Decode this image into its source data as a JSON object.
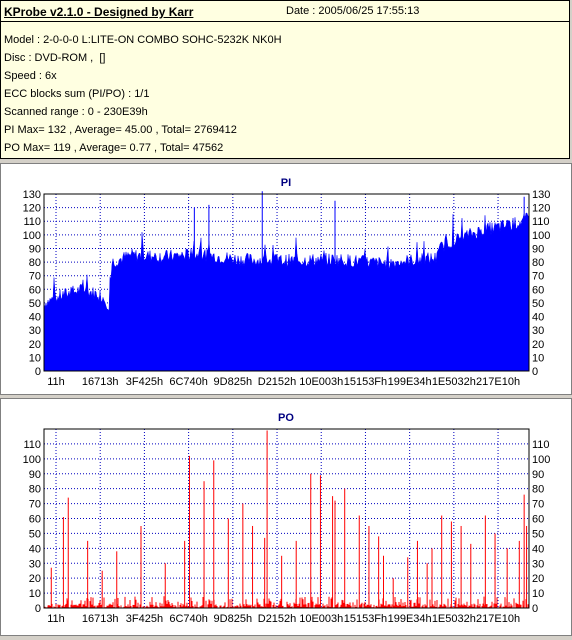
{
  "header": {
    "title": "KProbe v2.1.0 - Designed by Karr",
    "date": "Date : 2005/06/25 17:55:13",
    "lines": [
      "Model : 2-0-0-0 L:LITE-ON COMBO SOHC-5232K NK0H",
      "Disc : DVD-ROM ,  []",
      "Speed : 6x",
      "ECC blocks sum (PI/PO) : 1/1",
      "Scanned range : 0 - 230E39h",
      "PI Max= 132 , Average= 45.00 , Total= 2769412",
      "PO Max= 119 , Average= 0.77 , Total= 47562"
    ]
  },
  "chart_data": [
    {
      "type": "area",
      "title": "PI",
      "color": "#0000ff",
      "x_ticks": [
        "11h",
        "16713h",
        "3F425h",
        "6C740h",
        "9D825h",
        "D2152h",
        "10E003h",
        "15153Fh",
        "199E34h",
        "1E5032h",
        "217E10h"
      ],
      "ylim": [
        0,
        130
      ],
      "y_ticks": [
        0,
        10,
        20,
        30,
        40,
        50,
        60,
        70,
        80,
        90,
        100,
        110,
        120,
        130
      ],
      "grid": true,
      "profile": [
        [
          0,
          50
        ],
        [
          0.04,
          56
        ],
        [
          0.08,
          60
        ],
        [
          0.12,
          55
        ],
        [
          0.135,
          48
        ],
        [
          0.14,
          80
        ],
        [
          0.18,
          85
        ],
        [
          0.25,
          84
        ],
        [
          0.32,
          86
        ],
        [
          0.4,
          82
        ],
        [
          0.5,
          81
        ],
        [
          0.6,
          82
        ],
        [
          0.7,
          79
        ],
        [
          0.78,
          82
        ],
        [
          0.81,
          83
        ],
        [
          0.82,
          92
        ],
        [
          0.86,
          98
        ],
        [
          0.9,
          103
        ],
        [
          0.94,
          106
        ],
        [
          0.97,
          108
        ],
        [
          1.0,
          112
        ]
      ],
      "max_value": 132,
      "average": 45.0
    },
    {
      "type": "bar",
      "title": "PO",
      "color": "#ff0000",
      "x_ticks": [
        "11h",
        "16713h",
        "3F425h",
        "6C740h",
        "9D825h",
        "D2152h",
        "10E003h",
        "15153Fh",
        "199E34h",
        "1E5032h",
        "217E10h"
      ],
      "ylim": [
        0,
        120
      ],
      "y_ticks": [
        0,
        10,
        20,
        30,
        40,
        50,
        60,
        70,
        80,
        90,
        100,
        110
      ],
      "grid": true,
      "spikes": [
        [
          0.015,
          27
        ],
        [
          0.04,
          61
        ],
        [
          0.05,
          74
        ],
        [
          0.09,
          45
        ],
        [
          0.12,
          25
        ],
        [
          0.15,
          38
        ],
        [
          0.2,
          55
        ],
        [
          0.25,
          30
        ],
        [
          0.29,
          45
        ],
        [
          0.3,
          102
        ],
        [
          0.33,
          85
        ],
        [
          0.35,
          99
        ],
        [
          0.38,
          60
        ],
        [
          0.41,
          70
        ],
        [
          0.43,
          55
        ],
        [
          0.455,
          47
        ],
        [
          0.46,
          119
        ],
        [
          0.49,
          35
        ],
        [
          0.52,
          45
        ],
        [
          0.55,
          90
        ],
        [
          0.57,
          89
        ],
        [
          0.595,
          75
        ],
        [
          0.6,
          72
        ],
        [
          0.62,
          80
        ],
        [
          0.65,
          62
        ],
        [
          0.67,
          55
        ],
        [
          0.69,
          48
        ],
        [
          0.7,
          35
        ],
        [
          0.72,
          20
        ],
        [
          0.75,
          34
        ],
        [
          0.77,
          45
        ],
        [
          0.79,
          30
        ],
        [
          0.8,
          40
        ],
        [
          0.82,
          62
        ],
        [
          0.84,
          58
        ],
        [
          0.86,
          55
        ],
        [
          0.88,
          43
        ],
        [
          0.91,
          62
        ],
        [
          0.93,
          50
        ],
        [
          0.955,
          40
        ],
        [
          0.98,
          45
        ],
        [
          0.99,
          76
        ],
        [
          0.995,
          55
        ]
      ],
      "max_value": 119,
      "average": 0.77
    }
  ]
}
